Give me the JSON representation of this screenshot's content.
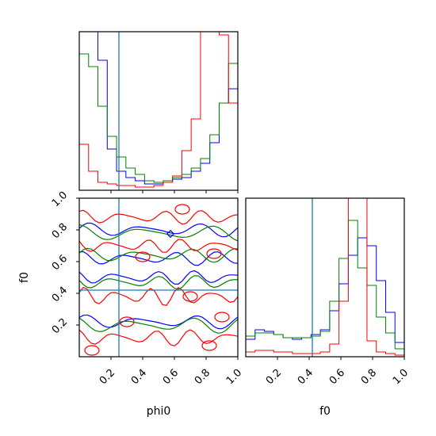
{
  "chart_data": {
    "type": "corner",
    "parameters": [
      "phi0",
      "f0"
    ],
    "axis_labels": {
      "x_bottom_left": "phi0",
      "x_bottom_right": "f0",
      "y_left": "f0"
    },
    "ranges": {
      "phi0": [
        0,
        1
      ],
      "f0": [
        0,
        1
      ]
    },
    "ticks": {
      "phi0": [
        "0.2",
        "0.4",
        "0.6",
        "0.8",
        "1.0"
      ],
      "f0": [
        "0.2",
        "0.4",
        "0.6",
        "0.8",
        "1.0"
      ]
    },
    "truths": {
      "phi0": 0.25,
      "f0": 0.42
    },
    "colors": {
      "blue": "#0000ff",
      "green": "#008000",
      "red": "#ff0000",
      "truth": "#1f77b4"
    },
    "series": [
      {
        "color": "blue",
        "hist_phi0": [
          1.0,
          1.0,
          0.82,
          0.26,
          0.12,
          0.08,
          0.06,
          0.04,
          0.04,
          0.05,
          0.07,
          0.08,
          0.12,
          0.17,
          0.3,
          0.55,
          0.64
        ],
        "hist_f0": [
          0.11,
          0.17,
          0.16,
          0.14,
          0.12,
          0.11,
          0.12,
          0.14,
          0.17,
          0.29,
          0.46,
          0.64,
          0.75,
          0.7,
          0.48,
          0.28,
          0.09
        ]
      },
      {
        "color": "green",
        "hist_phi0": [
          0.86,
          0.78,
          0.53,
          0.34,
          0.21,
          0.14,
          0.1,
          0.06,
          0.05,
          0.06,
          0.08,
          0.1,
          0.14,
          0.2,
          0.35,
          0.55,
          0.8
        ],
        "hist_f0": [
          0.13,
          0.15,
          0.15,
          0.14,
          0.12,
          0.12,
          0.12,
          0.13,
          0.16,
          0.35,
          0.62,
          0.86,
          0.56,
          0.45,
          0.25,
          0.15,
          0.05
        ]
      },
      {
        "color": "red",
        "hist_phi0": [
          0.29,
          0.12,
          0.05,
          0.04,
          0.03,
          0.03,
          0.02,
          0.02,
          0.03,
          0.05,
          0.09,
          0.25,
          0.45,
          1.0,
          1.0,
          0.98,
          0.55
        ],
        "hist_f0": [
          0.03,
          0.04,
          0.04,
          0.03,
          0.03,
          0.02,
          0.02,
          0.02,
          0.03,
          0.08,
          0.35,
          1.0,
          1.0,
          0.1,
          0.03,
          0.02,
          0.01
        ]
      }
    ]
  }
}
